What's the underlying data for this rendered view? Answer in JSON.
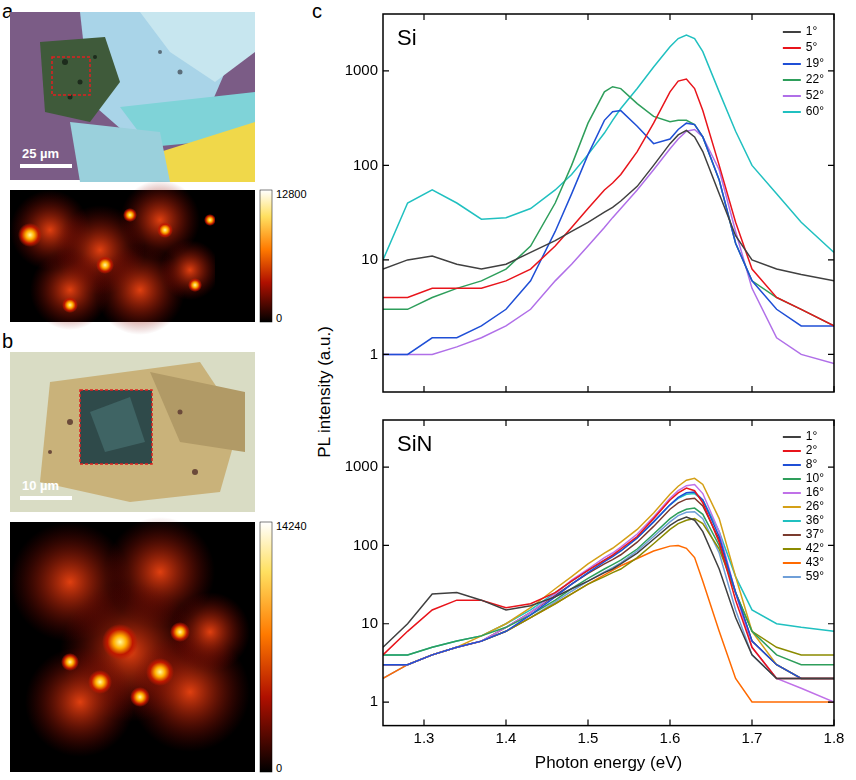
{
  "images": [
    {
      "label": "a",
      "scale_bar": "25 µm",
      "colorbar": {
        "range": [
          0,
          12800
        ],
        "ticks": [
          0,
          12800
        ]
      }
    },
    {
      "label": "b",
      "scale_bar": "10 µm",
      "colorbar": {
        "range": [
          0,
          14240
        ],
        "ticks": [
          0,
          14240
        ]
      }
    }
  ],
  "panel_c": {
    "label": "c",
    "ylabel": "PL intensity (a.u.)"
  },
  "chart_data": [
    {
      "type": "line",
      "title": "Si",
      "x": [
        1.25,
        1.28,
        1.31,
        1.34,
        1.37,
        1.4,
        1.43,
        1.46,
        1.48,
        1.5,
        1.52,
        1.53,
        1.54,
        1.56,
        1.58,
        1.6,
        1.61,
        1.62,
        1.63,
        1.64,
        1.66,
        1.68,
        1.7,
        1.73,
        1.76,
        1.8
      ],
      "series": [
        {
          "name": "1°",
          "color": "#404040",
          "values": [
            8,
            10,
            11,
            9,
            8,
            9,
            12,
            16,
            20,
            25,
            32,
            36,
            42,
            60,
            100,
            170,
            210,
            235,
            200,
            140,
            50,
            18,
            10,
            8,
            7,
            6
          ]
        },
        {
          "name": "5°",
          "color": "#e8141b",
          "values": [
            4,
            4,
            5,
            5,
            5,
            6,
            8,
            14,
            22,
            35,
            55,
            65,
            80,
            140,
            280,
            600,
            780,
            820,
            650,
            380,
            100,
            25,
            8,
            4,
            3,
            2
          ]
        },
        {
          "name": "19°",
          "color": "#1f4fd6",
          "values": [
            1,
            1,
            1.5,
            1.5,
            2,
            3,
            6,
            20,
            50,
            130,
            300,
            370,
            380,
            260,
            170,
            190,
            240,
            280,
            270,
            200,
            70,
            15,
            6,
            3,
            2,
            2
          ]
        },
        {
          "name": "22°",
          "color": "#2e9e5b",
          "values": [
            3,
            3,
            4,
            5,
            6,
            8,
            14,
            40,
            100,
            280,
            600,
            680,
            650,
            450,
            330,
            290,
            300,
            300,
            270,
            200,
            70,
            15,
            6,
            4,
            3,
            2
          ]
        },
        {
          "name": "52°",
          "color": "#b06fe8",
          "values": [
            1,
            1,
            1,
            1.2,
            1.5,
            2,
            3,
            6,
            9,
            14,
            22,
            28,
            35,
            55,
            90,
            150,
            190,
            230,
            240,
            200,
            90,
            20,
            5,
            1.5,
            1,
            0.8
          ]
        },
        {
          "name": "60°",
          "color": "#20c0c0",
          "values": [
            10,
            40,
            55,
            40,
            27,
            28,
            35,
            55,
            80,
            130,
            220,
            300,
            400,
            650,
            1100,
            1800,
            2200,
            2400,
            2200,
            1600,
            600,
            230,
            100,
            50,
            25,
            12
          ]
        }
      ],
      "xlim": [
        1.25,
        1.8
      ],
      "xticks": [
        1.3,
        1.4,
        1.5,
        1.6,
        1.7,
        1.8
      ],
      "ylim": [
        0.4,
        4000
      ],
      "yticks": [
        1,
        10,
        100,
        1000
      ],
      "log": "y",
      "grid": false,
      "legend": "upper right",
      "tick_labels": "y"
    },
    {
      "type": "line",
      "title": "SiN",
      "xlabel": "Photon energy (eV)",
      "x": [
        1.25,
        1.28,
        1.31,
        1.34,
        1.37,
        1.4,
        1.43,
        1.46,
        1.48,
        1.5,
        1.52,
        1.53,
        1.54,
        1.56,
        1.58,
        1.6,
        1.61,
        1.62,
        1.63,
        1.64,
        1.66,
        1.68,
        1.7,
        1.73,
        1.76,
        1.8
      ],
      "series": [
        {
          "name": "1°",
          "color": "#404040",
          "values": [
            5,
            10,
            24,
            25,
            20,
            15,
            17,
            22,
            28,
            35,
            45,
            50,
            58,
            80,
            120,
            180,
            210,
            230,
            210,
            150,
            50,
            12,
            4,
            2,
            2,
            2
          ]
        },
        {
          "name": "2°",
          "color": "#e8141b",
          "values": [
            4,
            8,
            15,
            20,
            20,
            16,
            18,
            25,
            35,
            48,
            65,
            75,
            90,
            130,
            220,
            380,
            470,
            540,
            500,
            350,
            110,
            20,
            5,
            2,
            2,
            2
          ]
        },
        {
          "name": "8°",
          "color": "#1f4fd6",
          "values": [
            3,
            3,
            4,
            5,
            6,
            8,
            13,
            22,
            32,
            45,
            62,
            72,
            85,
            125,
            200,
            330,
            410,
            470,
            480,
            380,
            130,
            25,
            6,
            3,
            2,
            2
          ]
        },
        {
          "name": "10°",
          "color": "#2e9e5b",
          "values": [
            4,
            4,
            5,
            6,
            7,
            9,
            13,
            20,
            28,
            38,
            50,
            57,
            65,
            90,
            140,
            220,
            260,
            290,
            300,
            250,
            100,
            25,
            8,
            4,
            3,
            3
          ]
        },
        {
          "name": "16°",
          "color": "#c071e8",
          "values": [
            3,
            3,
            4,
            5,
            6,
            9,
            14,
            24,
            36,
            50,
            70,
            80,
            95,
            140,
            230,
            400,
            500,
            580,
            600,
            460,
            150,
            25,
            5,
            2,
            1.5,
            1
          ]
        },
        {
          "name": "26°",
          "color": "#d4a017",
          "values": [
            3,
            3,
            4,
            5,
            7,
            10,
            16,
            28,
            40,
            58,
            80,
            92,
            110,
            160,
            260,
            450,
            570,
            680,
            720,
            600,
            220,
            40,
            8,
            3,
            2,
            2
          ]
        },
        {
          "name": "36°",
          "color": "#20c0c0",
          "values": [
            4,
            4,
            5,
            6,
            7,
            10,
            15,
            25,
            35,
            48,
            65,
            74,
            85,
            125,
            200,
            330,
            400,
            450,
            460,
            380,
            150,
            40,
            15,
            10,
            9,
            8
          ]
        },
        {
          "name": "37°",
          "color": "#7a3b2e",
          "values": [
            3,
            3,
            4,
            5,
            6,
            9,
            14,
            23,
            32,
            44,
            58,
            66,
            76,
            110,
            175,
            290,
            350,
            390,
            400,
            320,
            120,
            25,
            6,
            3,
            2,
            2
          ]
        },
        {
          "name": "42°",
          "color": "#8b8b00",
          "values": [
            3,
            3,
            4,
            5,
            6,
            8,
            12,
            18,
            24,
            32,
            40,
            45,
            50,
            70,
            105,
            160,
            190,
            210,
            220,
            190,
            90,
            25,
            8,
            5,
            4,
            4
          ]
        },
        {
          "name": "43°",
          "color": "#ff6a00",
          "values": [
            2,
            3,
            4,
            5,
            6,
            8,
            12,
            18,
            24,
            32,
            42,
            48,
            55,
            68,
            85,
            98,
            100,
            92,
            70,
            35,
            8,
            2,
            1,
            1,
            1,
            1
          ]
        },
        {
          "name": "59°",
          "color": "#6f9fd8",
          "values": [
            2,
            3,
            4,
            5,
            6,
            8,
            12,
            19,
            26,
            35,
            46,
            52,
            60,
            85,
            130,
            200,
            240,
            265,
            270,
            220,
            80,
            15,
            4,
            2,
            2,
            2
          ]
        }
      ],
      "xlim": [
        1.25,
        1.8
      ],
      "xticks": [
        1.3,
        1.4,
        1.5,
        1.6,
        1.7,
        1.8
      ],
      "ylim": [
        0.5,
        4000
      ],
      "yticks": [
        1,
        10,
        100,
        1000
      ],
      "log": "y",
      "grid": false,
      "legend": "upper right"
    }
  ]
}
